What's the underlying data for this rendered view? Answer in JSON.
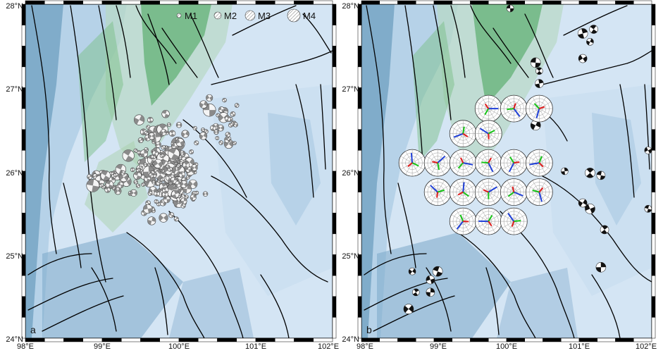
{
  "panels": [
    {
      "letter": "a",
      "x_ticks": [
        "98°E",
        "99°E",
        "100°E",
        "101°E",
        "102°E"
      ],
      "y_ticks": [
        "28°N",
        "27°N",
        "26°N",
        "25°N",
        "24°N"
      ],
      "legend": {
        "labels": [
          "M1",
          "M2",
          "M3",
          "M4"
        ]
      }
    },
    {
      "letter": "b",
      "x_ticks": [
        "98°E",
        "99°E",
        "100°E",
        "101°E",
        "102°E"
      ],
      "y_ticks": [
        "28°N",
        "27°N",
        "26°N",
        "25°N",
        "24°N"
      ]
    }
  ],
  "map": {
    "lon_range": [
      98,
      102
    ],
    "lat_range": [
      24,
      28
    ],
    "colors": {
      "lowland": "#d4e5f4",
      "valley": "#3f7fa6",
      "highland": "#63b175",
      "fault": "#000000",
      "compression_axis": "#1f3fd8",
      "intermediate_axis": "#16c416",
      "tension_axis": "#e01b1b"
    },
    "stress_grid_points": [
      {
        "lon": 99.75,
        "lat": 26.75
      },
      {
        "lon": 100.1,
        "lat": 26.75
      },
      {
        "lon": 100.45,
        "lat": 26.75
      },
      {
        "lon": 99.4,
        "lat": 26.45
      },
      {
        "lon": 99.75,
        "lat": 26.45
      },
      {
        "lon": 98.7,
        "lat": 26.1
      },
      {
        "lon": 99.05,
        "lat": 26.1
      },
      {
        "lon": 99.4,
        "lat": 26.1
      },
      {
        "lon": 99.75,
        "lat": 26.1
      },
      {
        "lon": 100.1,
        "lat": 26.1
      },
      {
        "lon": 100.45,
        "lat": 26.1
      },
      {
        "lon": 99.05,
        "lat": 25.75
      },
      {
        "lon": 99.4,
        "lat": 25.75
      },
      {
        "lon": 99.75,
        "lat": 25.75
      },
      {
        "lon": 100.1,
        "lat": 25.75
      },
      {
        "lon": 100.45,
        "lat": 25.75
      },
      {
        "lon": 99.4,
        "lat": 25.4
      },
      {
        "lon": 99.75,
        "lat": 25.4
      },
      {
        "lon": 100.1,
        "lat": 25.4
      }
    ]
  }
}
